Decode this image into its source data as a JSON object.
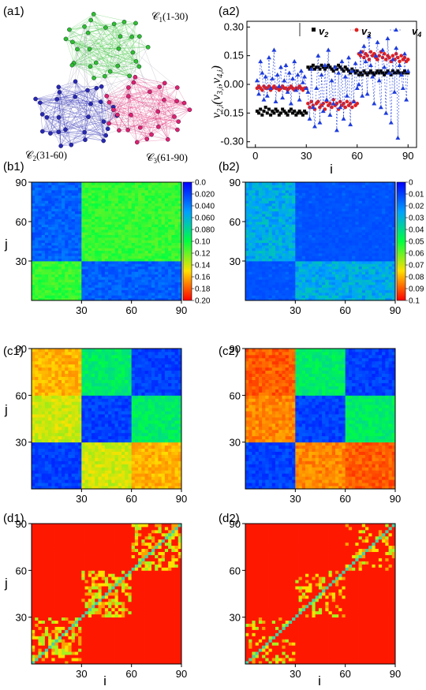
{
  "panels": {
    "a1": {
      "label": "(a1)"
    },
    "a2": {
      "label": "(a2)"
    },
    "b1": {
      "label": "(b1)"
    },
    "b2": {
      "label": "(b2)"
    },
    "c1": {
      "label": "(c1)"
    },
    "c2": {
      "label": "(c2)"
    },
    "d1": {
      "label": "(d1)"
    },
    "d2": {
      "label": "(d2)"
    }
  },
  "network": {
    "communities": [
      {
        "symbol": "𝒞",
        "sub": "1",
        "range": "(1-30)",
        "color": "#2ec02e"
      },
      {
        "symbol": "𝒞",
        "sub": "2",
        "range": "(31-60)",
        "color": "#2828b4"
      },
      {
        "symbol": "𝒞",
        "sub": "3",
        "range": "(61-90)",
        "color": "#e0206e"
      }
    ]
  },
  "axes": {
    "i_label": "i",
    "j_label": "j",
    "a2_ylabel": "v2,i(v3,i,v4,i)",
    "ticks_x": [
      "0",
      "30",
      "60",
      "90"
    ],
    "ticks_xi": [
      "30",
      "60",
      "90"
    ],
    "ticks_y": [
      "30",
      "60",
      "90"
    ]
  },
  "colorbars": {
    "b1": [
      "0.0",
      "0.020",
      "0.040",
      "0.060",
      "0.080",
      "0.10",
      "0.12",
      "0.14",
      "0.16",
      "0.18",
      "0.20"
    ],
    "b2": [
      "0",
      "0.01",
      "0.02",
      "0.03",
      "0.04",
      "0.05",
      "0.06",
      "0.07",
      "0.08",
      "0.09",
      "0.1"
    ]
  },
  "chart_data": [
    {
      "id": "a2",
      "type": "scatter",
      "xlabel": "i",
      "ylabel": "v2,i(v3,i,v4,i)",
      "xlim": [
        -5,
        95
      ],
      "ylim": [
        -0.33,
        0.33
      ],
      "xticks": [
        0,
        30,
        60,
        90
      ],
      "yticks": [
        -0.3,
        -0.15,
        0.0,
        0.15,
        0.3
      ],
      "ytick_labels": [
        "-0.30",
        "-0.15",
        "0.00",
        "0.15",
        "0.30"
      ],
      "legend_position": "top-right",
      "series": [
        {
          "name": "v2",
          "marker": "square",
          "color": "#000000",
          "dashed": false,
          "y": [
            -0.14,
            -0.15,
            -0.13,
            -0.16,
            -0.14,
            -0.12,
            -0.15,
            -0.13,
            -0.16,
            -0.14,
            -0.15,
            -0.13,
            -0.14,
            -0.16,
            -0.15,
            -0.13,
            -0.14,
            -0.15,
            -0.16,
            -0.14,
            -0.13,
            -0.15,
            -0.14,
            -0.16,
            -0.15,
            -0.14,
            -0.15,
            -0.16,
            -0.14,
            -0.15,
            0.09,
            0.08,
            0.09,
            0.1,
            0.08,
            0.09,
            0.09,
            0.08,
            0.1,
            0.09,
            0.08,
            0.09,
            0.1,
            0.09,
            0.08,
            0.07,
            0.09,
            0.08,
            0.1,
            0.09,
            0.08,
            0.07,
            0.09,
            0.08,
            0.07,
            0.06,
            0.08,
            0.07,
            0.06,
            0.07,
            0.05,
            0.06,
            0.05,
            0.07,
            0.06,
            0.05,
            0.06,
            0.07,
            0.06,
            0.05,
            0.06,
            0.07,
            0.06,
            0.07,
            0.06,
            0.05,
            0.06,
            0.07,
            0.06,
            0.05,
            0.07,
            0.06,
            0.06,
            0.07,
            0.06,
            0.05,
            0.06,
            0.07,
            0.06,
            0.06
          ]
        },
        {
          "name": "v3",
          "marker": "circle",
          "color": "#e02020",
          "dashed": false,
          "y": [
            -0.02,
            -0.01,
            -0.02,
            -0.03,
            -0.01,
            -0.02,
            -0.02,
            -0.01,
            -0.03,
            -0.02,
            -0.01,
            -0.02,
            -0.02,
            -0.03,
            -0.02,
            -0.01,
            -0.02,
            -0.02,
            -0.03,
            -0.02,
            -0.01,
            -0.02,
            -0.03,
            -0.02,
            -0.02,
            -0.01,
            -0.02,
            -0.03,
            -0.02,
            -0.02,
            -0.1,
            -0.12,
            -0.09,
            -0.11,
            -0.13,
            -0.1,
            -0.09,
            -0.12,
            -0.11,
            -0.1,
            -0.13,
            -0.09,
            -0.11,
            -0.1,
            -0.12,
            -0.08,
            -0.11,
            -0.1,
            -0.13,
            -0.09,
            -0.11,
            -0.1,
            -0.12,
            -0.09,
            -0.11,
            -0.1,
            -0.12,
            -0.09,
            -0.11,
            -0.1,
            0.16,
            0.15,
            0.17,
            0.14,
            0.16,
            0.15,
            0.13,
            0.17,
            0.15,
            0.16,
            0.14,
            0.13,
            0.15,
            0.17,
            0.14,
            0.16,
            0.13,
            0.15,
            0.14,
            0.12,
            0.15,
            0.13,
            0.16,
            0.14,
            0.12,
            0.15,
            0.13,
            0.14,
            0.12,
            0.13
          ]
        },
        {
          "name": "v4",
          "marker": "triangle",
          "color": "#1e3cdc",
          "dashed": true,
          "y": [
            0.02,
            -0.05,
            0.12,
            0.06,
            -0.08,
            0.04,
            -0.06,
            0.14,
            -0.02,
            0.03,
            0.18,
            -0.09,
            0.05,
            -0.01,
            0.09,
            -0.07,
            0.02,
            0.1,
            -0.04,
            0.06,
            -0.1,
            0.03,
            0.12,
            -0.03,
            0.05,
            -0.08,
            0.07,
            0.01,
            0.04,
            -0.02,
            -0.04,
            -0.18,
            0.08,
            -0.12,
            -0.22,
            -0.02,
            0.15,
            -0.2,
            0.05,
            -0.14,
            0.1,
            -0.08,
            0.18,
            -0.16,
            0.02,
            -0.1,
            0.09,
            -0.24,
            0.06,
            -0.12,
            0.12,
            -0.18,
            0.04,
            -0.06,
            0.14,
            -0.21,
            0.07,
            -0.09,
            0.11,
            -0.02,
            0.0,
            0.17,
            -0.06,
            0.2,
            0.12,
            -0.05,
            0.25,
            0.1,
            0.04,
            -0.1,
            0.15,
            0.22,
            0.02,
            -0.12,
            0.18,
            0.09,
            -0.15,
            0.24,
            0.06,
            -0.2,
            0.13,
            -0.04,
            0.19,
            -0.28,
            0.1,
            0.05,
            -0.02,
            0.16,
            -0.08,
            0.07
          ]
        }
      ]
    },
    {
      "id": "b1",
      "type": "heatmap",
      "xlabel": "",
      "ylabel": "j",
      "xticks": [
        30,
        60,
        90
      ],
      "yticks": [
        30,
        60,
        90
      ],
      "colorbar_range": [
        0.0,
        0.2
      ],
      "colorbar_reversed": true,
      "block_values": [
        [
          0.11,
          0.03,
          0.03
        ],
        [
          0.03,
          0.11,
          0.11
        ],
        [
          0.03,
          0.11,
          0.11
        ]
      ]
    },
    {
      "id": "b2",
      "type": "heatmap",
      "xlabel": "",
      "ylabel": "",
      "xticks": [
        30,
        60,
        90
      ],
      "yticks": [
        30,
        60,
        90
      ],
      "colorbar_range": [
        0,
        0.1
      ],
      "colorbar_reversed": true,
      "block_values": [
        [
          0.002,
          0.025,
          0.025
        ],
        [
          0.025,
          0.002,
          0.002
        ],
        [
          0.025,
          0.002,
          0.002
        ]
      ]
    },
    {
      "id": "c1",
      "type": "heatmap",
      "xlabel": "",
      "ylabel": "j",
      "xticks": [
        30,
        60,
        90
      ],
      "yticks": [
        30,
        60,
        90
      ],
      "block_values": [
        [
          0.02,
          0.14,
          0.16
        ],
        [
          0.14,
          0.02,
          0.09
        ],
        [
          0.16,
          0.09,
          0.02
        ]
      ]
    },
    {
      "id": "c2",
      "type": "heatmap",
      "xlabel": "",
      "ylabel": "",
      "xticks": [
        30,
        60,
        90
      ],
      "yticks": [
        30,
        60,
        90
      ],
      "block_values": [
        [
          0.02,
          0.17,
          0.18
        ],
        [
          0.17,
          0.02,
          0.09
        ],
        [
          0.18,
          0.09,
          0.02
        ]
      ]
    },
    {
      "id": "d1",
      "type": "heatmap",
      "xlabel": "i",
      "ylabel": "j",
      "xticks": [
        30,
        60,
        90
      ],
      "yticks": [
        30,
        60,
        90
      ]
    },
    {
      "id": "d2",
      "type": "heatmap",
      "xlabel": "i",
      "ylabel": "",
      "xticks": [
        30,
        60,
        90
      ],
      "yticks": [
        30,
        60,
        90
      ]
    }
  ]
}
